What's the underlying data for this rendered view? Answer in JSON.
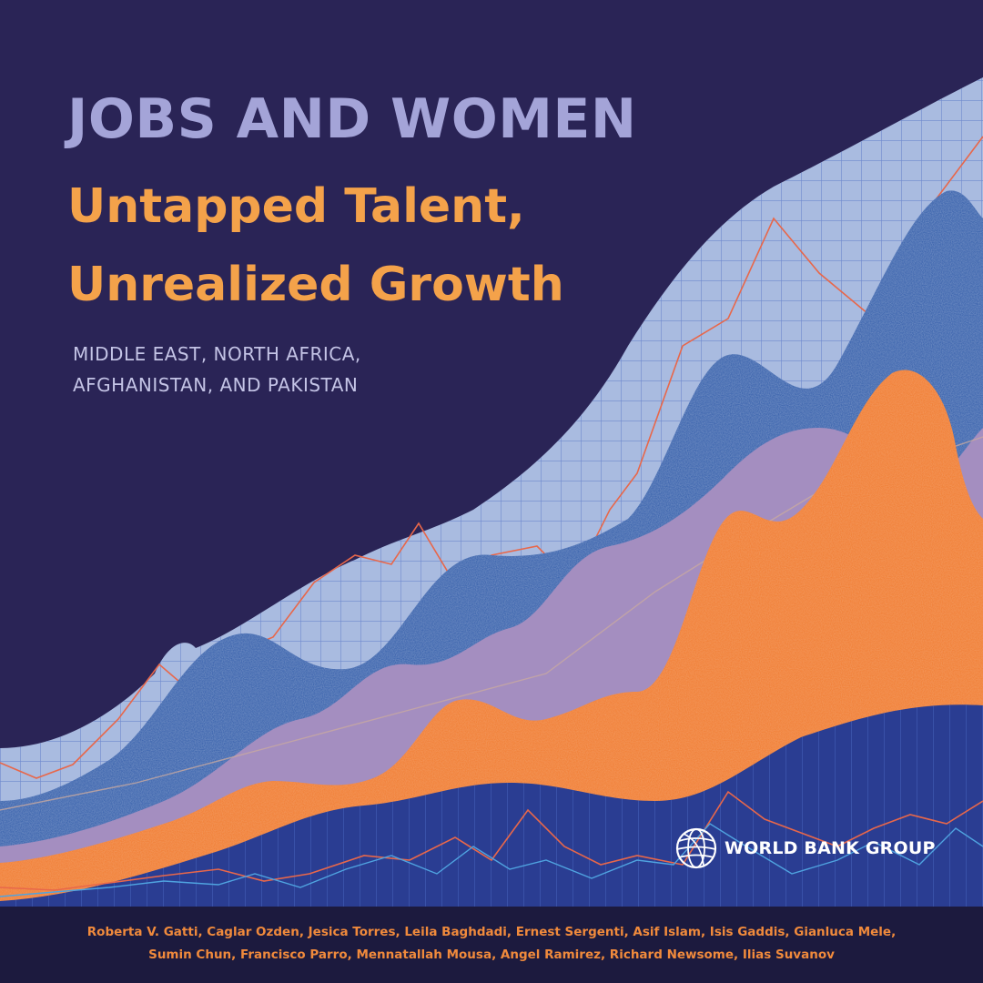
{
  "cover": {
    "title": "JOBS AND WOMEN",
    "subtitle_line1": "Untapped Talent,",
    "subtitle_line2": "Unrealized Growth",
    "region_line1": "MIDDLE EAST, NORTH AFRICA,",
    "region_line2": "AFGHANISTAN, AND PAKISTAN",
    "publisher": "WORLD BANK GROUP",
    "authors_line1": "Roberta V. Gatti, Caglar Ozden, Jesica Torres, Leila Baghdadi, Ernest Sergenti, Asif Islam, Isis Gaddis, Gianluca Mele,",
    "authors_line2": "Sumin Chun, Francisco Parro, Mennatallah Mousa, Angel Ramirez, Richard Newsome, Ilias Suvanov"
  },
  "colors": {
    "background": "#2a2456",
    "title": "#a4a4d8",
    "subtitle": "#f4a24a",
    "grid_band": "#a9bbe0",
    "blue_wave": "#2f5aa8",
    "lavender_wave": "#a48ec0",
    "orange_wave": "#f07a2e",
    "bottom_grid": "#2a3d92",
    "author_bar": "#1c1a3e"
  },
  "icons": {
    "logo": "globe-icon",
    "art": "layered-wave-chart-illustration"
  }
}
